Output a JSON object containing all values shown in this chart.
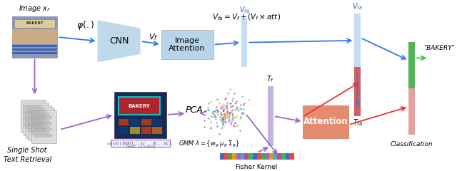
{
  "bg_color": "#ffffff",
  "image_label": "Image $x_f$",
  "phi_label": "$\\varphi(.)$",
  "vf_label": "$V_f$",
  "cnn_label": "CNN",
  "img_att_label": "Image\nAttention",
  "formula_label": "$V_{fa} = V_f + (V_f \\times att)$",
  "vfa_mid_label": "$V_{fa}$",
  "vfa_right_label": "$V_{fa}$",
  "tf_label": "$T_f$",
  "tfa_label": "$T_{fa}$",
  "attention_label": "Attention",
  "bakery_label": "\"BAKERY\"",
  "classification_label": "Classification",
  "fisher_label": "Fisher Kernel",
  "gmm_label": "$GMM\\ \\lambda=\\{w_g\\ \\mu_g\\ \\Sigma_g\\}$",
  "pca_label": "PCA",
  "sstd_label": "Single Shot\nText Retrieval",
  "arrow_blue": "#3377ee",
  "arrow_purple": "#9966cc",
  "arrow_red": "#ee3333",
  "arrow_green": "#44bb44",
  "cnn_color": "#b8d4e8",
  "img_att_color": "#b8d4e8",
  "attention_color": "#e08060",
  "vfa_mid_bar_color": "#b8d4f0",
  "tf_bar_color": "#b8a0d8",
  "vfa_right_top_color": "#b8d4f0",
  "vfa_right_bot_color": "#cc4444",
  "out_green_color": "#44aa44",
  "out_red_color": "#cc4444",
  "fisher_colors": [
    "#4466cc",
    "#ee4444",
    "#44aa44",
    "#ee9900",
    "#9966cc",
    "#44aacc",
    "#cc4488",
    "#33bb55",
    "#4466cc",
    "#ee4444",
    "#44aa44",
    "#9966cc",
    "#ee9900",
    "#44aacc",
    "#cc4488",
    "#33bb55",
    "#4466cc",
    "#ee4444"
  ],
  "doc_color": "#dddddd",
  "doc_edge": "#aaaaaa"
}
